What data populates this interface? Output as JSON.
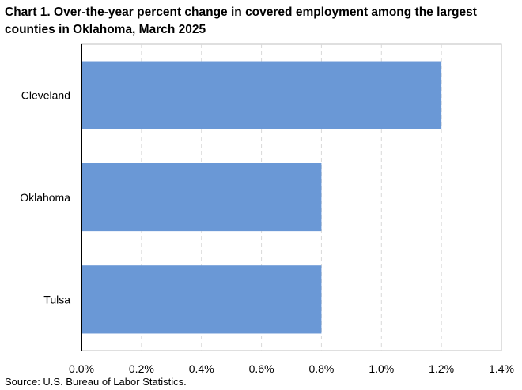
{
  "chart_data": {
    "type": "bar",
    "orientation": "horizontal",
    "title_line1": "Chart 1. Over-the-year percent change in covered employment among the largest",
    "title_line2": "counties in Oklahoma, March 2025",
    "categories": [
      "Cleveland",
      "Oklahoma",
      "Tulsa"
    ],
    "values": [
      1.2,
      0.8,
      0.8
    ],
    "xlim": [
      0,
      1.4
    ],
    "ticks": [
      "0.0%",
      "0.2%",
      "0.4%",
      "0.6%",
      "0.8%",
      "1.0%",
      "1.2%",
      "1.4%"
    ],
    "grid": "vertical-dashed",
    "legend": "none",
    "bar_color": "#6a98d6"
  },
  "source": "Source: U.S. Bureau of Labor Statistics."
}
